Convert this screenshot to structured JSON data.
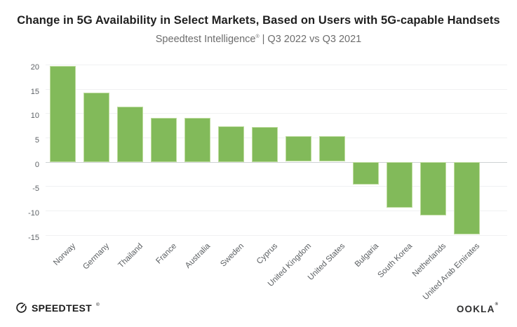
{
  "header": {
    "title": "Change in 5G Availability in Select Markets, Based on Users with 5G-capable Handsets",
    "subtitle_brand": "Speedtest Intelligence",
    "subtitle_registered": "®",
    "subtitle_rest": "| Q3 2022 vs Q3 2021"
  },
  "chart_data": {
    "type": "bar",
    "title": "Change in 5G Availability in Select Markets, Based on Users with 5G-capable Handsets",
    "subtitle": "Speedtest Intelligence® | Q3 2022 vs Q3 2021",
    "categories": [
      "Norway",
      "Germany",
      "Thailand",
      "France",
      "Australia",
      "Sweden",
      "Cyprus",
      "United Kingdom",
      "United States",
      "Bulgaria",
      "South Korea",
      "Netherlands",
      "United Arab Emirates"
    ],
    "values": [
      19.7,
      14.2,
      11.4,
      9.1,
      9.1,
      7.3,
      7.1,
      5.3,
      5.3,
      -4.7,
      -9.5,
      -11.1,
      -14.9
    ],
    "xlabel": "",
    "ylabel": "",
    "ylim": [
      -15,
      20
    ],
    "yticks": [
      20,
      15,
      10,
      5,
      0,
      -5,
      -10,
      -15
    ],
    "grid": "horizontal",
    "legend": "none",
    "bar_color": "#82ba5a",
    "bar_border_color": "#bedc9f",
    "zero_line_color": "#ced2d4",
    "grid_color": "#f0f1f2",
    "axis_label_color": "#5e6266"
  },
  "footer": {
    "speedtest_label": "SPEEDTEST",
    "speedtest_registered": "®",
    "speedtest_icon": "speedometer-gauge-icon",
    "ookla_label": "OOKLA",
    "ookla_registered": "®"
  }
}
